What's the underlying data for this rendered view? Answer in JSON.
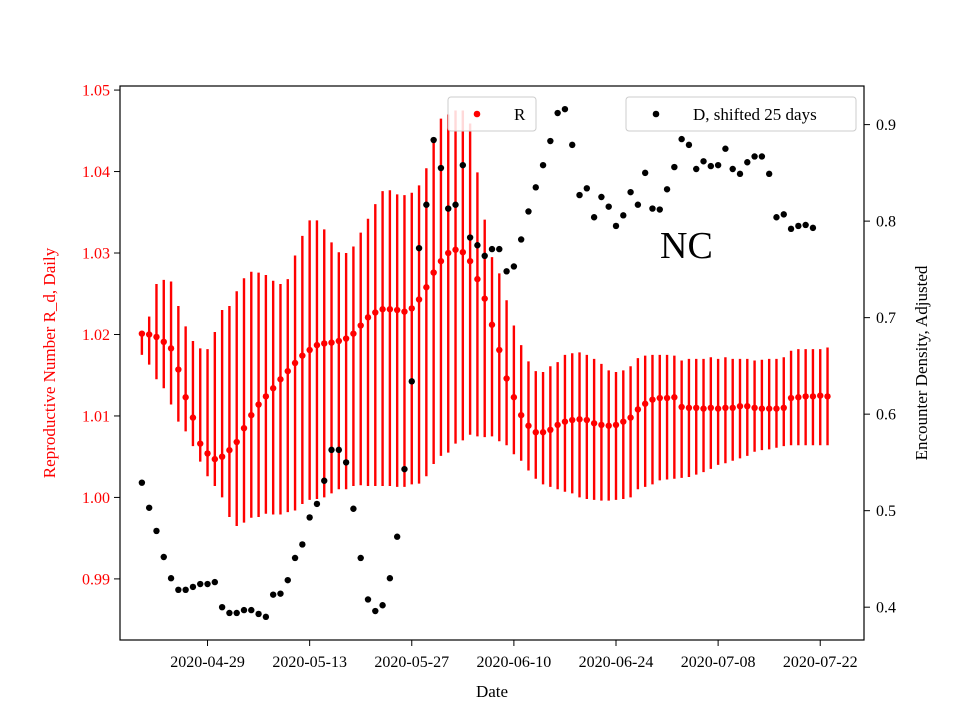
{
  "chart_data": {
    "type": "scatter",
    "annotation": "NC",
    "xlabel": "Date",
    "ylabel_left": "Reproductive Number R_d, Daily",
    "ylabel_right": "Encounter Density, Adjusted",
    "x_ticks": [
      "2020-04-29",
      "2020-05-13",
      "2020-05-27",
      "2020-06-10",
      "2020-06-24",
      "2020-07-08",
      "2020-07-22"
    ],
    "y_left_ticks": [
      "0.99",
      "1.00",
      "1.01",
      "1.02",
      "1.03",
      "1.04",
      "1.05"
    ],
    "y_right_ticks": [
      "0.4",
      "0.5",
      "0.6",
      "0.7",
      "0.8",
      "0.9"
    ],
    "xlim": [
      "2020-04-17",
      "2020-07-28"
    ],
    "ylim_left": [
      0.9825,
      1.0505
    ],
    "ylim_right": [
      0.366,
      0.94
    ],
    "colors": {
      "R": "#ff0000",
      "D": "#000000",
      "left_axis": "#ff0000",
      "right_axis": "#000000"
    },
    "legend": [
      {
        "label": "R",
        "color": "#ff0000",
        "position": "top-center"
      },
      {
        "label": "D, shifted 25 days",
        "color": "#000000",
        "position": "top-right"
      }
    ],
    "R": {
      "start_date": "2020-04-20",
      "values": [
        1.0201,
        1.02,
        1.0197,
        1.0191,
        1.0183,
        1.0157,
        1.0123,
        1.0098,
        1.0066,
        1.0054,
        1.0047,
        1.005,
        1.0058,
        1.0068,
        1.0085,
        1.0101,
        1.0114,
        1.0124,
        1.0134,
        1.0145,
        1.0155,
        1.0165,
        1.0174,
        1.0181,
        1.0187,
        1.0189,
        1.019,
        1.0192,
        1.0195,
        1.0201,
        1.0211,
        1.0221,
        1.0227,
        1.0231,
        1.0231,
        1.023,
        1.0228,
        1.0232,
        1.0243,
        1.0258,
        1.0276,
        1.029,
        1.03,
        1.0304,
        1.0301,
        1.029,
        1.0268,
        1.0244,
        1.0212,
        1.0181,
        1.0146,
        1.0123,
        1.0101,
        1.0088,
        1.008,
        1.008,
        1.0083,
        1.0089,
        1.0093,
        1.0095,
        1.0096,
        1.0095,
        1.0091,
        1.0089,
        1.0088,
        1.0089,
        1.0093,
        1.0098,
        1.0108,
        1.0115,
        1.012,
        1.0122,
        1.0122,
        1.0123,
        1.0111,
        1.011,
        1.011,
        1.0109,
        1.011,
        1.0109,
        1.011,
        1.011,
        1.0112,
        1.0112,
        1.011,
        1.0109,
        1.0109,
        1.0109,
        1.011,
        1.0122,
        1.0123,
        1.0124,
        1.0124,
        1.0125,
        1.0124
      ],
      "lower": [
        1.0175,
        1.0163,
        1.0145,
        1.0134,
        1.0114,
        1.0093,
        1.0081,
        1.0063,
        1.0044,
        1.0026,
        1.0014,
        1.0,
        0.9976,
        0.9965,
        0.9969,
        0.9975,
        0.9976,
        0.998,
        0.9979,
        0.9979,
        0.9982,
        0.9984,
        0.9992,
        0.9997,
        0.9998,
        1.0,
        1.0005,
        1.001,
        1.001,
        1.0014,
        1.0015,
        1.0014,
        1.0014,
        1.0014,
        1.0014,
        1.0013,
        1.0013,
        1.0016,
        1.0017,
        1.0026,
        1.0041,
        1.0051,
        1.0055,
        1.0066,
        1.007,
        1.0077,
        1.0075,
        1.0074,
        1.0075,
        1.0069,
        1.0064,
        1.0053,
        1.0045,
        1.0033,
        1.0023,
        1.0016,
        1.0013,
        1.001,
        1.0007,
        1.0005,
        1.0,
        0.9998,
        0.9997,
        0.9996,
        0.9996,
        0.9997,
        0.9998,
        1.0,
        1.001,
        1.0013,
        1.0016,
        1.0021,
        1.0022,
        1.0023,
        1.0024,
        1.0025,
        1.0028,
        1.0031,
        1.0035,
        1.004,
        1.0042,
        1.0045,
        1.0048,
        1.0051,
        1.0056,
        1.0058,
        1.0059,
        1.0061,
        1.0063,
        1.0064,
        1.0064,
        1.0064,
        1.0064,
        1.0064,
        1.0064
      ],
      "upper": [
        1.0204,
        1.0222,
        1.0262,
        1.0267,
        1.0265,
        1.0235,
        1.021,
        1.0192,
        1.0183,
        1.0182,
        1.0203,
        1.023,
        1.0235,
        1.0253,
        1.0269,
        1.0277,
        1.0276,
        1.0273,
        1.0266,
        1.0262,
        1.0268,
        1.0297,
        1.0321,
        1.034,
        1.034,
        1.0329,
        1.0313,
        1.0301,
        1.03,
        1.0308,
        1.0325,
        1.0342,
        1.036,
        1.0376,
        1.0377,
        1.0372,
        1.0371,
        1.0374,
        1.0383,
        1.0404,
        1.044,
        1.0465,
        1.047,
        1.0475,
        1.0475,
        1.0459,
        1.0399,
        1.0341,
        1.0295,
        1.0275,
        1.0242,
        1.0211,
        1.0187,
        1.0167,
        1.0155,
        1.0154,
        1.0161,
        1.0166,
        1.0175,
        1.0177,
        1.0178,
        1.0175,
        1.017,
        1.0164,
        1.0156,
        1.0154,
        1.0156,
        1.0161,
        1.0171,
        1.0174,
        1.0175,
        1.0175,
        1.0175,
        1.0174,
        1.0168,
        1.017,
        1.017,
        1.017,
        1.0172,
        1.017,
        1.0172,
        1.017,
        1.017,
        1.017,
        1.0168,
        1.0169,
        1.017,
        1.017,
        1.0172,
        1.018,
        1.0182,
        1.0182,
        1.0182,
        1.0182,
        1.0184
      ]
    },
    "D": {
      "start_date": "2020-04-20",
      "values": [
        0.529,
        0.503,
        0.479,
        0.452,
        0.43,
        0.418,
        0.418,
        0.421,
        0.424,
        0.424,
        0.426,
        0.4,
        0.394,
        0.394,
        0.397,
        0.397,
        0.393,
        0.39,
        0.413,
        0.414,
        0.428,
        0.451,
        0.465,
        0.493,
        0.507,
        0.531,
        0.563,
        0.563,
        0.55,
        0.502,
        0.451,
        0.408,
        0.396,
        0.402,
        0.43,
        0.473,
        0.543,
        0.634,
        0.772,
        0.817,
        0.884,
        0.855,
        0.813,
        0.817,
        0.858,
        0.783,
        0.775,
        0.764,
        0.771,
        0.771,
        0.748,
        0.753,
        0.781,
        0.81,
        0.835,
        0.858,
        0.883,
        0.912,
        0.916,
        0.879,
        0.827,
        0.834,
        0.804,
        0.825,
        0.815,
        0.795,
        0.806,
        0.83,
        0.817,
        0.85,
        0.813,
        0.812,
        0.833,
        0.856,
        0.885,
        0.879,
        0.854,
        0.862,
        0.857,
        0.858,
        0.875,
        0.854,
        0.849,
        0.861,
        0.867,
        0.867,
        0.849,
        0.804,
        0.807,
        0.792,
        0.795,
        0.796,
        0.793
      ]
    }
  }
}
